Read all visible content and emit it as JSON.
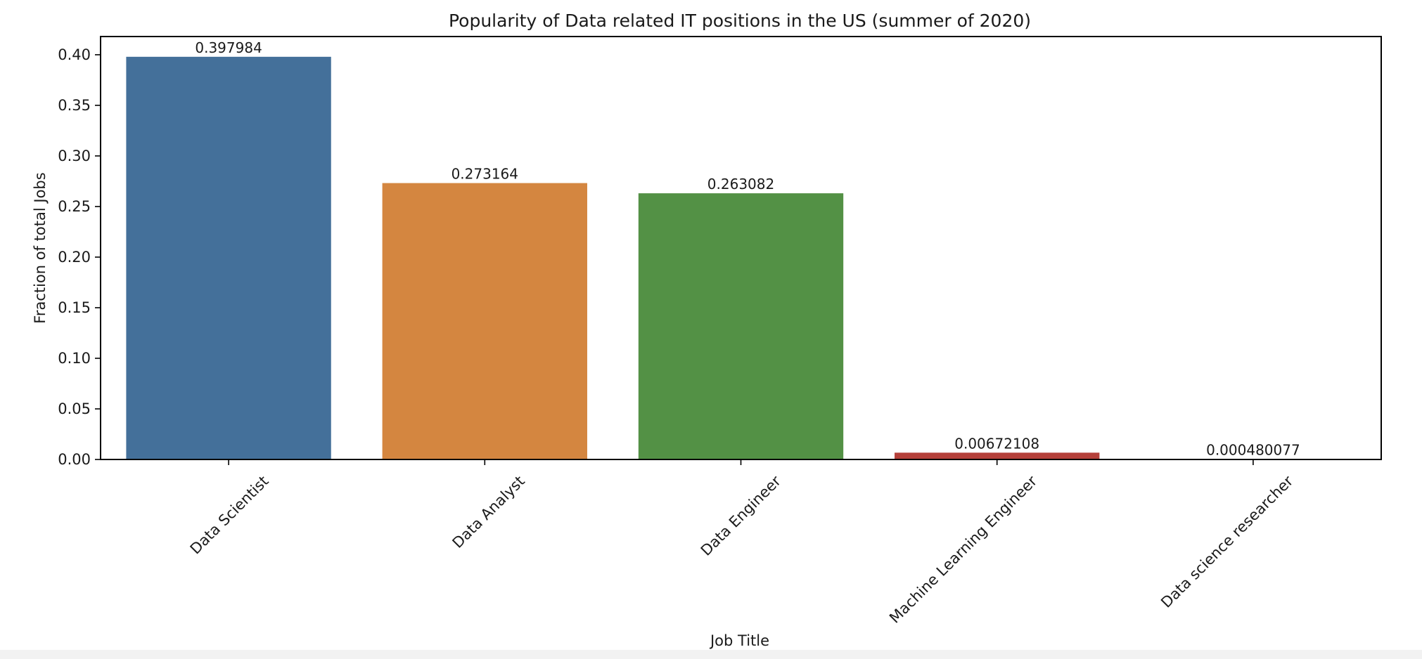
{
  "chart_data": {
    "type": "bar",
    "title": "Popularity of Data related IT positions in the US (summer of 2020)",
    "xlabel": "Job Title",
    "ylabel": "Fraction of total Jobs",
    "categories": [
      "Data Scientist",
      "Data Analyst",
      "Data Engineer",
      "Machine Learning Engineer",
      "Data science researcher"
    ],
    "values": [
      0.397984,
      0.273164,
      0.263082,
      0.00672108,
      0.000480077
    ],
    "value_labels": [
      "0.397984",
      "0.273164",
      "0.263082",
      "0.00672108",
      "0.000480077"
    ],
    "colors": [
      "#44709a",
      "#d48640",
      "#539145",
      "#b5403a",
      "#7f64a5"
    ],
    "ylim": [
      0,
      0.418
    ],
    "yticks": [
      "0.00",
      "0.05",
      "0.10",
      "0.15",
      "0.20",
      "0.25",
      "0.30",
      "0.35",
      "0.40"
    ],
    "grid": false,
    "legend": "none"
  }
}
